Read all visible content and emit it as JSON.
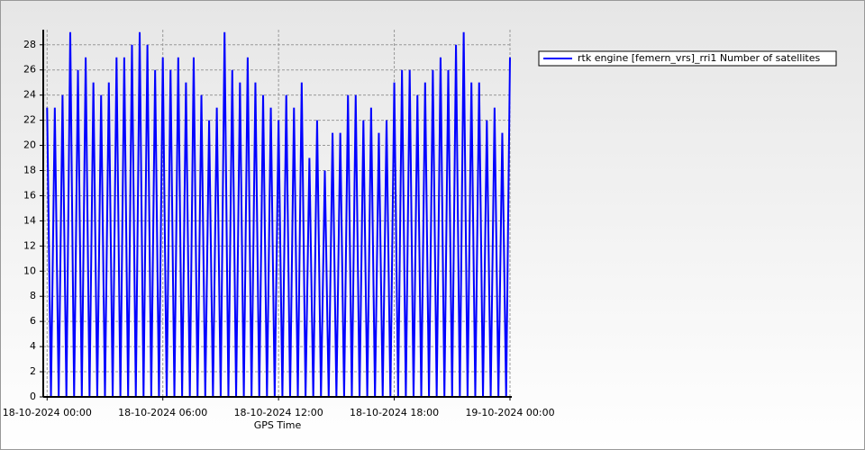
{
  "chart_data": {
    "type": "line",
    "x_label": "GPS Time",
    "x": [
      0,
      0.2,
      0.4,
      0.6,
      0.8,
      1,
      1.2,
      1.4,
      1.6,
      1.8,
      2,
      2.2,
      2.4,
      2.6,
      2.8,
      3,
      3.2,
      3.4,
      3.6,
      3.8,
      4,
      4.2,
      4.4,
      4.6,
      4.8,
      5,
      5.2,
      5.4,
      5.6,
      5.8,
      6,
      6.2,
      6.4,
      6.6,
      6.8,
      7,
      7.2,
      7.4,
      7.6,
      7.8,
      8,
      8.2,
      8.4,
      8.6,
      8.8,
      9,
      9.2,
      9.4,
      9.6,
      9.8,
      10,
      10.2,
      10.4,
      10.6,
      10.8,
      11,
      11.2,
      11.4,
      11.6,
      11.8,
      12,
      12.2,
      12.4,
      12.6,
      12.8,
      13,
      13.2,
      13.4,
      13.6,
      13.8,
      14,
      14.2,
      14.4,
      14.6,
      14.8,
      15,
      15.2,
      15.4,
      15.6,
      15.8,
      16,
      16.2,
      16.4,
      16.6,
      16.8,
      17,
      17.2,
      17.4,
      17.6,
      17.8,
      18,
      18.2,
      18.4,
      18.6,
      18.8,
      19,
      19.2,
      19.4,
      19.6,
      19.8,
      20,
      20.2,
      20.4,
      20.6,
      20.8,
      21,
      21.2,
      21.4,
      21.6,
      21.8,
      22,
      22.2,
      22.4,
      22.6,
      22.8,
      23,
      23.2,
      23.4,
      23.6,
      23.8,
      24
    ],
    "series": [
      {
        "name": "rtk engine [femern_vrs]_rri1 Number of satellites",
        "color": "#0000ff",
        "values": [
          23,
          0,
          23,
          0,
          24,
          0,
          29,
          0,
          26,
          0,
          27,
          0,
          25,
          0,
          24,
          0,
          25,
          0,
          27,
          0,
          27,
          0,
          28,
          0,
          29,
          0,
          28,
          0,
          26,
          0,
          27,
          0,
          26,
          0,
          27,
          0,
          25,
          0,
          27,
          0,
          24,
          0,
          22,
          0,
          23,
          0,
          29,
          0,
          26,
          0,
          25,
          0,
          27,
          0,
          25,
          0,
          24,
          0,
          23,
          0,
          22,
          0,
          24,
          0,
          23,
          0,
          25,
          0,
          19,
          0,
          22,
          0,
          18,
          0,
          21,
          0,
          21,
          0,
          24,
          0,
          24,
          0,
          22,
          0,
          23,
          0,
          21,
          0,
          22,
          0,
          25,
          0,
          26,
          0,
          26,
          0,
          24,
          0,
          25,
          0,
          26,
          0,
          27,
          0,
          26,
          0,
          28,
          0,
          29,
          0,
          25,
          0,
          25,
          0,
          22,
          0,
          23,
          0,
          21,
          0,
          27
        ]
      }
    ],
    "xlim": [
      -0.2,
      24
    ],
    "xticks": [
      {
        "value": 0,
        "label": "18-10-2024 00:00"
      },
      {
        "value": 6,
        "label": "18-10-2024 06:00"
      },
      {
        "value": 12,
        "label": "18-10-2024 12:00"
      },
      {
        "value": 18,
        "label": "18-10-2024 18:00"
      },
      {
        "value": 24,
        "label": "19-10-2024 00:00"
      }
    ],
    "ylim": [
      0,
      29.2
    ],
    "yticks": [
      0,
      2,
      4,
      6,
      8,
      10,
      12,
      14,
      16,
      18,
      20,
      22,
      24,
      26,
      28
    ],
    "grid": true
  }
}
